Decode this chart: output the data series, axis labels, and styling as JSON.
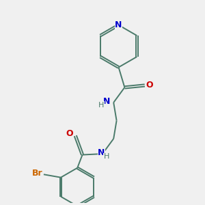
{
  "bg_color": "#f0f0f0",
  "bond_color": "#4a7a6a",
  "N_color": "#0000cc",
  "O_color": "#cc0000",
  "Br_color": "#cc6600",
  "bond_width": 1.4,
  "figsize": [
    3.0,
    3.0
  ],
  "dpi": 100,
  "xlim": [
    0,
    10
  ],
  "ylim": [
    0,
    10
  ]
}
